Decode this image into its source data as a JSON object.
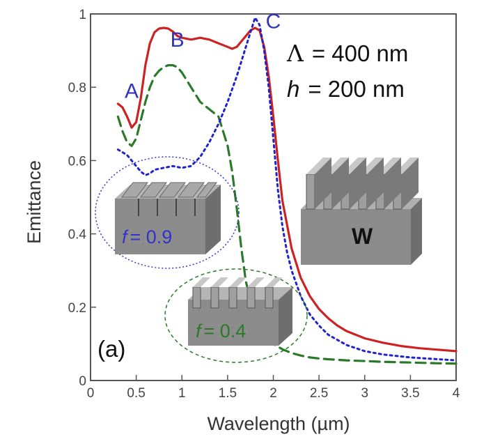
{
  "chart_data": {
    "type": "line",
    "xlabel": "Wavelength (µm)",
    "ylabel": "Emittance",
    "xlim": [
      0,
      4
    ],
    "ylim": [
      0,
      1
    ],
    "xticks": [
      "0",
      "0.5",
      "1",
      "1.5",
      "2",
      "2.5",
      "3",
      "3.5",
      "4"
    ],
    "yticks": [
      "0",
      "0.2",
      "0.4",
      "0.6",
      "0.8",
      "1"
    ],
    "panel_label": "(a)",
    "parameters": [
      {
        "symbol": "Λ",
        "value": "= 400 nm"
      },
      {
        "symbol": "h",
        "value": "= 200 nm"
      }
    ],
    "peak_labels": [
      {
        "text": "A",
        "x": 0.45,
        "y": 0.79,
        "color": "#3333bb"
      },
      {
        "text": "B",
        "x": 0.95,
        "y": 0.93,
        "color": "#3333bb"
      },
      {
        "text": "C",
        "x": 2.0,
        "y": 0.98,
        "color": "#3333bb"
      }
    ],
    "insets": [
      {
        "label_var": "f",
        "label_value": "= 0.9",
        "color": "#3333cc"
      },
      {
        "label_var": "f",
        "label_value": "= 0.4",
        "color": "#2a7a2a"
      },
      {
        "label": "W"
      }
    ],
    "series": [
      {
        "style": "solid",
        "color": "#cc2222",
        "x": [
          0.3,
          0.35,
          0.4,
          0.45,
          0.5,
          0.55,
          0.6,
          0.65,
          0.7,
          0.75,
          0.8,
          0.85,
          0.9,
          0.95,
          1.0,
          1.1,
          1.2,
          1.3,
          1.4,
          1.5,
          1.55,
          1.6,
          1.65,
          1.7,
          1.75,
          1.8,
          1.85,
          1.9,
          1.95,
          2.0,
          2.05,
          2.1,
          2.2,
          2.3,
          2.4,
          2.5,
          2.6,
          2.7,
          2.8,
          3.0,
          3.2,
          3.4,
          3.6,
          3.8,
          4.0
        ],
        "y": [
          0.755,
          0.745,
          0.72,
          0.69,
          0.705,
          0.77,
          0.86,
          0.92,
          0.95,
          0.96,
          0.962,
          0.96,
          0.952,
          0.94,
          0.935,
          0.93,
          0.935,
          0.93,
          0.92,
          0.91,
          0.905,
          0.91,
          0.925,
          0.94,
          0.955,
          0.962,
          0.955,
          0.91,
          0.83,
          0.72,
          0.6,
          0.49,
          0.36,
          0.28,
          0.23,
          0.195,
          0.17,
          0.15,
          0.135,
          0.115,
          0.103,
          0.094,
          0.088,
          0.084,
          0.08
        ]
      },
      {
        "style": "dashed",
        "color": "#2a7a2a",
        "x": [
          0.3,
          0.35,
          0.4,
          0.45,
          0.5,
          0.55,
          0.6,
          0.65,
          0.7,
          0.75,
          0.8,
          0.85,
          0.9,
          0.95,
          1.0,
          1.1,
          1.2,
          1.3,
          1.4,
          1.5,
          1.55,
          1.6,
          1.65,
          1.7,
          1.8,
          1.9,
          2.0,
          2.1,
          2.2,
          2.3,
          2.4,
          2.5,
          2.6,
          2.8,
          3.0,
          3.2,
          3.5,
          3.8,
          4.0
        ],
        "y": [
          0.72,
          0.68,
          0.65,
          0.64,
          0.66,
          0.71,
          0.76,
          0.8,
          0.83,
          0.845,
          0.855,
          0.86,
          0.86,
          0.855,
          0.84,
          0.8,
          0.76,
          0.74,
          0.72,
          0.64,
          0.57,
          0.47,
          0.36,
          0.27,
          0.17,
          0.12,
          0.1,
          0.085,
          0.075,
          0.068,
          0.063,
          0.06,
          0.058,
          0.055,
          0.053,
          0.051,
          0.049,
          0.047,
          0.046
        ]
      },
      {
        "style": "dotted",
        "color": "#2222cc",
        "x": [
          0.3,
          0.4,
          0.5,
          0.55,
          0.6,
          0.65,
          0.7,
          0.8,
          0.9,
          1.0,
          1.1,
          1.2,
          1.3,
          1.4,
          1.5,
          1.6,
          1.7,
          1.75,
          1.8,
          1.85,
          1.9,
          1.95,
          2.0,
          2.05,
          2.1,
          2.15,
          2.2,
          2.3,
          2.4,
          2.5,
          2.6,
          2.8,
          3.0,
          3.2,
          3.5,
          3.8,
          4.0
        ],
        "y": [
          0.63,
          0.615,
          0.585,
          0.57,
          0.56,
          0.565,
          0.575,
          0.58,
          0.585,
          0.58,
          0.585,
          0.61,
          0.65,
          0.7,
          0.76,
          0.83,
          0.91,
          0.95,
          0.99,
          0.97,
          0.9,
          0.8,
          0.66,
          0.52,
          0.42,
          0.35,
          0.3,
          0.23,
          0.18,
          0.15,
          0.125,
          0.097,
          0.08,
          0.071,
          0.063,
          0.058,
          0.055
        ]
      }
    ]
  }
}
